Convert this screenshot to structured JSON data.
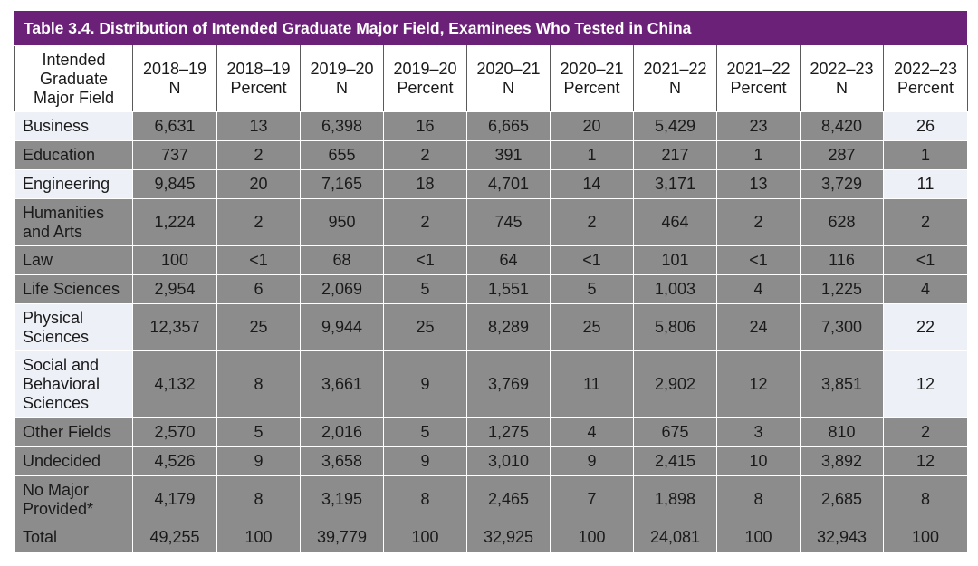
{
  "title": "Table 3.4. Distribution of Intended Graduate Major Field, Examinees Who Tested in China",
  "headers": [
    [
      "Intended",
      "Graduate",
      "Major Field"
    ],
    [
      "2018–19",
      "N"
    ],
    [
      "2018–19",
      "Percent"
    ],
    [
      "2019–20",
      "N"
    ],
    [
      "2019–20",
      "Percent"
    ],
    [
      "2020–21",
      "N"
    ],
    [
      "2020–21",
      "Percent"
    ],
    [
      "2021–22",
      "N"
    ],
    [
      "2021–22",
      "Percent"
    ],
    [
      "2022–23",
      "N"
    ],
    [
      "2022–23",
      "Percent"
    ]
  ],
  "rows": [
    {
      "label": [
        "Business"
      ],
      "values": [
        "6,631",
        "13",
        "6,398",
        "16",
        "6,665",
        "20",
        "5,429",
        "23",
        "8,420",
        "26"
      ]
    },
    {
      "label": [
        "Education"
      ],
      "values": [
        "737",
        "2",
        "655",
        "2",
        "391",
        "1",
        "217",
        "1",
        "287",
        "1"
      ]
    },
    {
      "label": [
        "Engineering"
      ],
      "values": [
        "9,845",
        "20",
        "7,165",
        "18",
        "4,701",
        "14",
        "3,171",
        "13",
        "3,729",
        "11"
      ]
    },
    {
      "label": [
        "Humanities",
        "and Arts"
      ],
      "values": [
        "1,224",
        "2",
        "950",
        "2",
        "745",
        "2",
        "464",
        "2",
        "628",
        "2"
      ]
    },
    {
      "label": [
        "Law"
      ],
      "values": [
        "100",
        "<1",
        "68",
        "<1",
        "64",
        "<1",
        "101",
        "<1",
        "116",
        "<1"
      ]
    },
    {
      "label": [
        "Life Sciences"
      ],
      "values": [
        "2,954",
        "6",
        "2,069",
        "5",
        "1,551",
        "5",
        "1,003",
        "4",
        "1,225",
        "4"
      ]
    },
    {
      "label": [
        "Physical",
        "Sciences"
      ],
      "values": [
        "12,357",
        "25",
        "9,944",
        "25",
        "8,289",
        "25",
        "5,806",
        "24",
        "7,300",
        "22"
      ]
    },
    {
      "label": [
        "Social and",
        "Behavioral",
        "Sciences"
      ],
      "values": [
        "4,132",
        "8",
        "3,661",
        "9",
        "3,769",
        "11",
        "2,902",
        "12",
        "3,851",
        "12"
      ]
    },
    {
      "label": [
        "Other Fields"
      ],
      "values": [
        "2,570",
        "5",
        "2,016",
        "5",
        "1,275",
        "4",
        "675",
        "3",
        "810",
        "2"
      ]
    },
    {
      "label": [
        "Undecided"
      ],
      "values": [
        "4,526",
        "9",
        "3,658",
        "9",
        "3,010",
        "9",
        "2,415",
        "10",
        "3,892",
        "12"
      ]
    },
    {
      "label": [
        "No Major",
        "Provided*"
      ],
      "values": [
        "4,179",
        "8",
        "3,195",
        "8",
        "2,465",
        "7",
        "1,898",
        "8",
        "2,685",
        "8"
      ]
    },
    {
      "label": [
        "Total"
      ],
      "values": [
        "49,255",
        "100",
        "39,779",
        "100",
        "32,925",
        "100",
        "24,081",
        "100",
        "32,943",
        "100"
      ]
    }
  ],
  "colors": {
    "title_bg": "#6b2177",
    "cell_gray": "#8c8c8c",
    "cell_highlight": "#eef0f7"
  }
}
